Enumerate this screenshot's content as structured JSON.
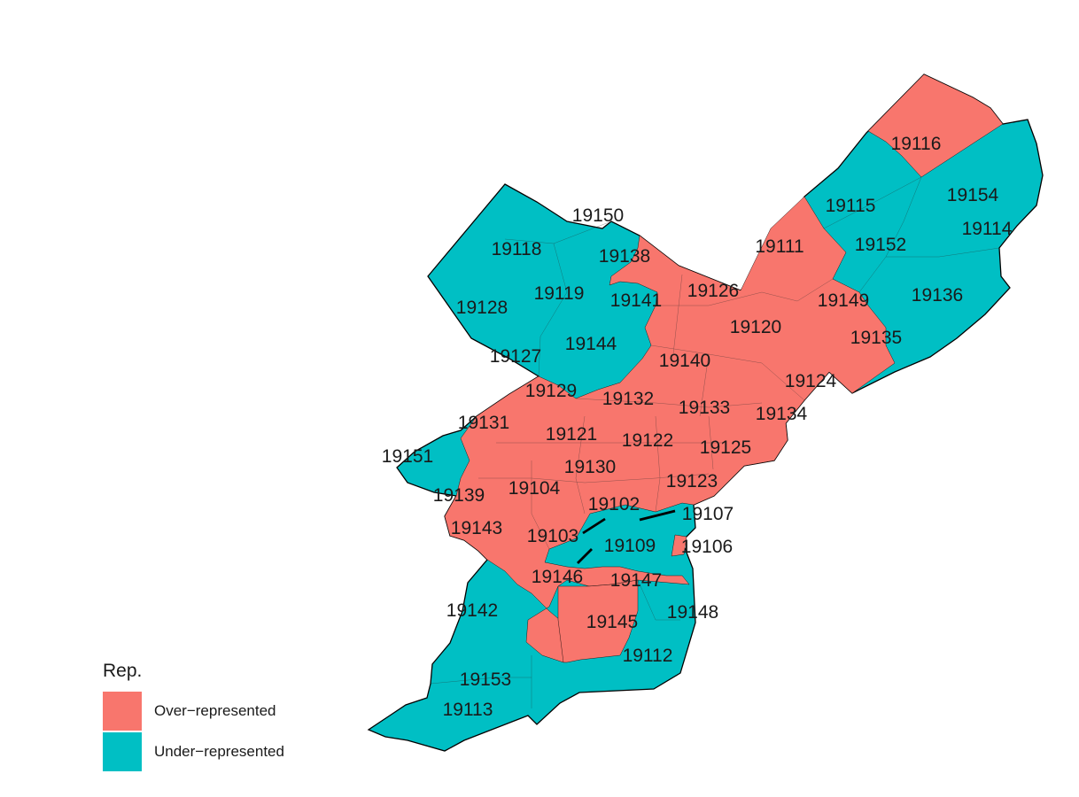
{
  "legend": {
    "title": "Rep.",
    "items": [
      {
        "label": "Over−represented",
        "color": "#F8766D"
      },
      {
        "label": "Under−represented",
        "color": "#00BFC4"
      }
    ]
  },
  "zip_codes": [
    {
      "zip": "19116",
      "status": "over"
    },
    {
      "zip": "19115",
      "status": "under"
    },
    {
      "zip": "19154",
      "status": "under"
    },
    {
      "zip": "19114",
      "status": "under"
    },
    {
      "zip": "19152",
      "status": "under"
    },
    {
      "zip": "19111",
      "status": "over"
    },
    {
      "zip": "19136",
      "status": "under"
    },
    {
      "zip": "19149",
      "status": "over"
    },
    {
      "zip": "19135",
      "status": "over"
    },
    {
      "zip": "19150",
      "status": "under"
    },
    {
      "zip": "19118",
      "status": "under"
    },
    {
      "zip": "19138",
      "status": "under"
    },
    {
      "zip": "19126",
      "status": "over"
    },
    {
      "zip": "19119",
      "status": "under"
    },
    {
      "zip": "19141",
      "status": "over"
    },
    {
      "zip": "19128",
      "status": "under"
    },
    {
      "zip": "19120",
      "status": "over"
    },
    {
      "zip": "19144",
      "status": "under"
    },
    {
      "zip": "19127",
      "status": "under"
    },
    {
      "zip": "19140",
      "status": "over"
    },
    {
      "zip": "19124",
      "status": "over"
    },
    {
      "zip": "19129",
      "status": "over"
    },
    {
      "zip": "19132",
      "status": "over"
    },
    {
      "zip": "19133",
      "status": "over"
    },
    {
      "zip": "19134",
      "status": "over"
    },
    {
      "zip": "19131",
      "status": "over"
    },
    {
      "zip": "19121",
      "status": "over"
    },
    {
      "zip": "19122",
      "status": "over"
    },
    {
      "zip": "19125",
      "status": "over"
    },
    {
      "zip": "19151",
      "status": "under"
    },
    {
      "zip": "19130",
      "status": "over"
    },
    {
      "zip": "19104",
      "status": "over"
    },
    {
      "zip": "19123",
      "status": "over"
    },
    {
      "zip": "19139",
      "status": "over"
    },
    {
      "zip": "19102",
      "status": "under"
    },
    {
      "zip": "19107",
      "status": "under"
    },
    {
      "zip": "19143",
      "status": "over"
    },
    {
      "zip": "19103",
      "status": "over"
    },
    {
      "zip": "19109",
      "status": "under"
    },
    {
      "zip": "19106",
      "status": "over"
    },
    {
      "zip": "19146",
      "status": "over"
    },
    {
      "zip": "19147",
      "status": "over"
    },
    {
      "zip": "19142",
      "status": "under"
    },
    {
      "zip": "19148",
      "status": "under"
    },
    {
      "zip": "19145",
      "status": "over"
    },
    {
      "zip": "19112",
      "status": "under"
    },
    {
      "zip": "19153",
      "status": "under"
    },
    {
      "zip": "19113",
      "status": "under"
    }
  ]
}
